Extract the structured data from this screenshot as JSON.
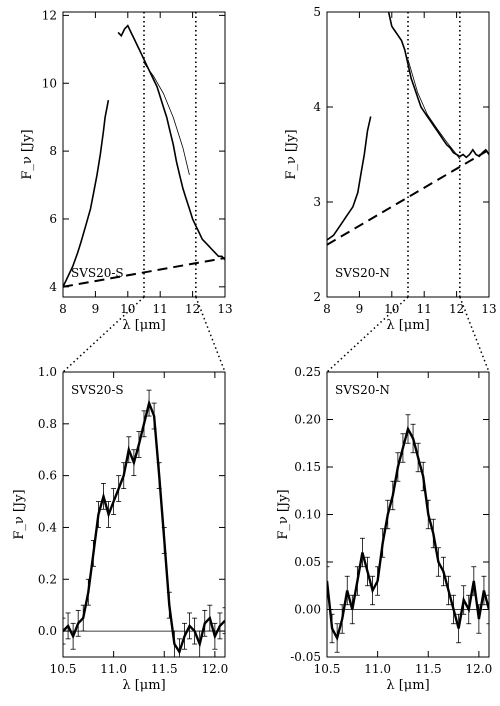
{
  "chart_data": [
    {
      "type": "line",
      "label": "SVS20-S",
      "xlabel": "λ [μm]",
      "ylabel": "F_ν [Jy]",
      "xlim": [
        8,
        13
      ],
      "ylim": [
        3.7,
        12.1
      ],
      "xticks": [
        "8",
        "9",
        "10",
        "11",
        "12",
        "13"
      ],
      "yticks": [
        "4",
        "6",
        "8",
        "10",
        "12"
      ],
      "xtick_values": [
        8,
        9,
        10,
        11,
        12,
        13
      ],
      "ytick_values": [
        4,
        6,
        8,
        10,
        12
      ],
      "vlines": [
        10.5,
        12.1
      ],
      "series": [
        {
          "x": [
            8.0,
            8.15,
            8.3,
            8.45,
            8.55,
            8.7,
            8.85,
            8.95,
            9.05,
            9.15,
            9.25,
            9.3,
            9.4
          ],
          "y": [
            4.0,
            4.3,
            4.6,
            5.0,
            5.3,
            5.8,
            6.3,
            6.8,
            7.3,
            7.9,
            8.6,
            9.0,
            9.5
          ]
        },
        {
          "x": [
            9.7,
            9.8,
            9.9,
            10.0,
            10.1,
            10.2,
            10.3,
            10.4,
            10.5,
            10.6,
            10.7,
            10.8,
            10.9,
            11.0,
            11.1,
            11.2,
            11.3,
            11.4,
            11.5,
            11.6,
            11.7,
            11.8,
            11.9,
            12.0,
            12.1,
            12.2,
            12.3,
            12.4,
            12.5,
            12.6,
            12.7,
            12.8,
            12.9,
            13.0
          ],
          "y": [
            11.5,
            11.4,
            11.6,
            11.7,
            11.5,
            11.3,
            11.1,
            10.9,
            10.7,
            10.5,
            10.3,
            10.1,
            9.9,
            9.6,
            9.3,
            9.0,
            8.6,
            8.2,
            7.7,
            7.3,
            6.9,
            6.6,
            6.3,
            6.0,
            5.8,
            5.6,
            5.4,
            5.3,
            5.2,
            5.1,
            5.0,
            4.9,
            4.9,
            4.8
          ]
        }
      ],
      "fit": {
        "x": [
          10.5,
          10.8,
          11.1,
          11.4,
          11.7,
          11.9
        ],
        "y": [
          10.6,
          10.2,
          9.7,
          9.0,
          8.1,
          7.3
        ]
      },
      "continuum": {
        "x": [
          8,
          13
        ],
        "y": [
          4.0,
          4.85
        ]
      }
    },
    {
      "type": "line",
      "label": "SVS20-N",
      "xlabel": "λ [μm]",
      "ylabel": "F_ν [Jy]",
      "xlim": [
        8,
        13
      ],
      "ylim": [
        2,
        5
      ],
      "xticks": [
        "8",
        "9",
        "10",
        "11",
        "12",
        "13"
      ],
      "yticks": [
        "2",
        "3",
        "4",
        "5"
      ],
      "xtick_values": [
        8,
        9,
        10,
        11,
        12,
        13
      ],
      "ytick_values": [
        2,
        3,
        4,
        5
      ],
      "vlines": [
        10.5,
        12.1
      ],
      "series": [
        {
          "x": [
            8.0,
            8.2,
            8.4,
            8.6,
            8.8,
            8.95,
            9.05,
            9.15,
            9.25,
            9.35
          ],
          "y": [
            2.6,
            2.65,
            2.75,
            2.85,
            2.95,
            3.1,
            3.3,
            3.5,
            3.75,
            3.9
          ]
        },
        {
          "x": [
            9.9,
            10.0,
            10.1,
            10.2,
            10.3,
            10.4,
            10.5,
            10.6,
            10.7,
            10.8,
            10.9,
            11.0,
            11.1,
            11.2,
            11.3,
            11.4,
            11.5,
            11.6,
            11.7,
            11.8,
            11.9,
            12.0,
            12.1,
            12.2,
            12.3,
            12.4,
            12.5,
            12.6,
            12.7,
            12.8,
            12.9,
            13.0
          ],
          "y": [
            5.0,
            4.85,
            4.8,
            4.75,
            4.7,
            4.6,
            4.45,
            4.3,
            4.2,
            4.1,
            4.0,
            3.95,
            3.9,
            3.85,
            3.8,
            3.75,
            3.7,
            3.65,
            3.6,
            3.57,
            3.52,
            3.5,
            3.48,
            3.5,
            3.47,
            3.5,
            3.55,
            3.5,
            3.48,
            3.52,
            3.55,
            3.5
          ]
        }
      ],
      "fit": {
        "x": [
          10.5,
          10.8,
          11.1,
          11.4,
          11.7,
          12.0,
          12.1
        ],
        "y": [
          4.5,
          4.15,
          3.92,
          3.77,
          3.63,
          3.5,
          3.45
        ]
      },
      "continuum": {
        "x": [
          8,
          13
        ],
        "y": [
          2.55,
          3.55
        ]
      }
    },
    {
      "type": "line",
      "label": "SVS20-S",
      "xlabel": "λ [μm]",
      "ylabel": "F_ν [Jy]",
      "xlim": [
        10.5,
        12.1
      ],
      "ylim": [
        -0.1,
        1.0
      ],
      "xticks": [
        "10.5",
        "11.0",
        "11.5",
        "12.0"
      ],
      "yticks": [
        "0.0",
        "0.2",
        "0.4",
        "0.6",
        "0.8",
        "1.0"
      ],
      "xtick_values": [
        10.5,
        11.0,
        11.5,
        12.0
      ],
      "ytick_values": [
        0.0,
        0.2,
        0.4,
        0.6,
        0.8,
        1.0
      ],
      "zero_line": true,
      "series": [
        {
          "x": [
            10.5,
            10.55,
            10.6,
            10.65,
            10.7,
            10.75,
            10.8,
            10.85,
            10.9,
            10.95,
            11.0,
            11.05,
            11.1,
            11.15,
            11.2,
            11.25,
            11.3,
            11.35,
            11.4,
            11.45,
            11.5,
            11.55,
            11.6,
            11.65,
            11.7,
            11.75,
            11.8,
            11.85,
            11.9,
            11.95,
            12.0,
            12.05,
            12.1
          ],
          "y": [
            0.0,
            0.02,
            -0.02,
            0.03,
            0.05,
            0.15,
            0.3,
            0.45,
            0.52,
            0.45,
            0.5,
            0.55,
            0.6,
            0.7,
            0.65,
            0.72,
            0.8,
            0.88,
            0.83,
            0.6,
            0.35,
            0.1,
            -0.05,
            -0.08,
            -0.02,
            0.02,
            0.0,
            -0.05,
            0.03,
            0.05,
            -0.02,
            0.02,
            0.04
          ],
          "err": 0.05
        }
      ]
    },
    {
      "type": "line",
      "label": "SVS20-N",
      "xlabel": "λ [μm]",
      "ylabel": "F_ν [Jy]",
      "xlim": [
        10.5,
        12.1
      ],
      "ylim": [
        -0.05,
        0.25
      ],
      "xticks": [
        "10.5",
        "11.0",
        "11.5",
        "12.0"
      ],
      "yticks": [
        "-0.05",
        "0.00",
        "0.05",
        "0.10",
        "0.15",
        "0.20",
        "0.25"
      ],
      "xtick_values": [
        10.5,
        11.0,
        11.5,
        12.0
      ],
      "ytick_values": [
        -0.05,
        0.0,
        0.05,
        0.1,
        0.15,
        0.2,
        0.25
      ],
      "zero_line": true,
      "series": [
        {
          "x": [
            10.5,
            10.55,
            10.6,
            10.65,
            10.7,
            10.75,
            10.8,
            10.85,
            10.9,
            10.95,
            11.0,
            11.05,
            11.1,
            11.15,
            11.2,
            11.25,
            11.3,
            11.35,
            11.4,
            11.45,
            11.5,
            11.55,
            11.6,
            11.65,
            11.7,
            11.75,
            11.8,
            11.85,
            11.9,
            11.95,
            12.0,
            12.05,
            12.1
          ],
          "y": [
            0.03,
            -0.02,
            -0.03,
            -0.01,
            0.02,
            0.0,
            0.03,
            0.06,
            0.04,
            0.02,
            0.03,
            0.07,
            0.1,
            0.12,
            0.15,
            0.17,
            0.19,
            0.18,
            0.16,
            0.14,
            0.1,
            0.08,
            0.05,
            0.04,
            0.02,
            0.0,
            -0.02,
            0.01,
            0.0,
            0.03,
            -0.01,
            0.02,
            0.0
          ],
          "err": 0.015
        }
      ]
    }
  ]
}
